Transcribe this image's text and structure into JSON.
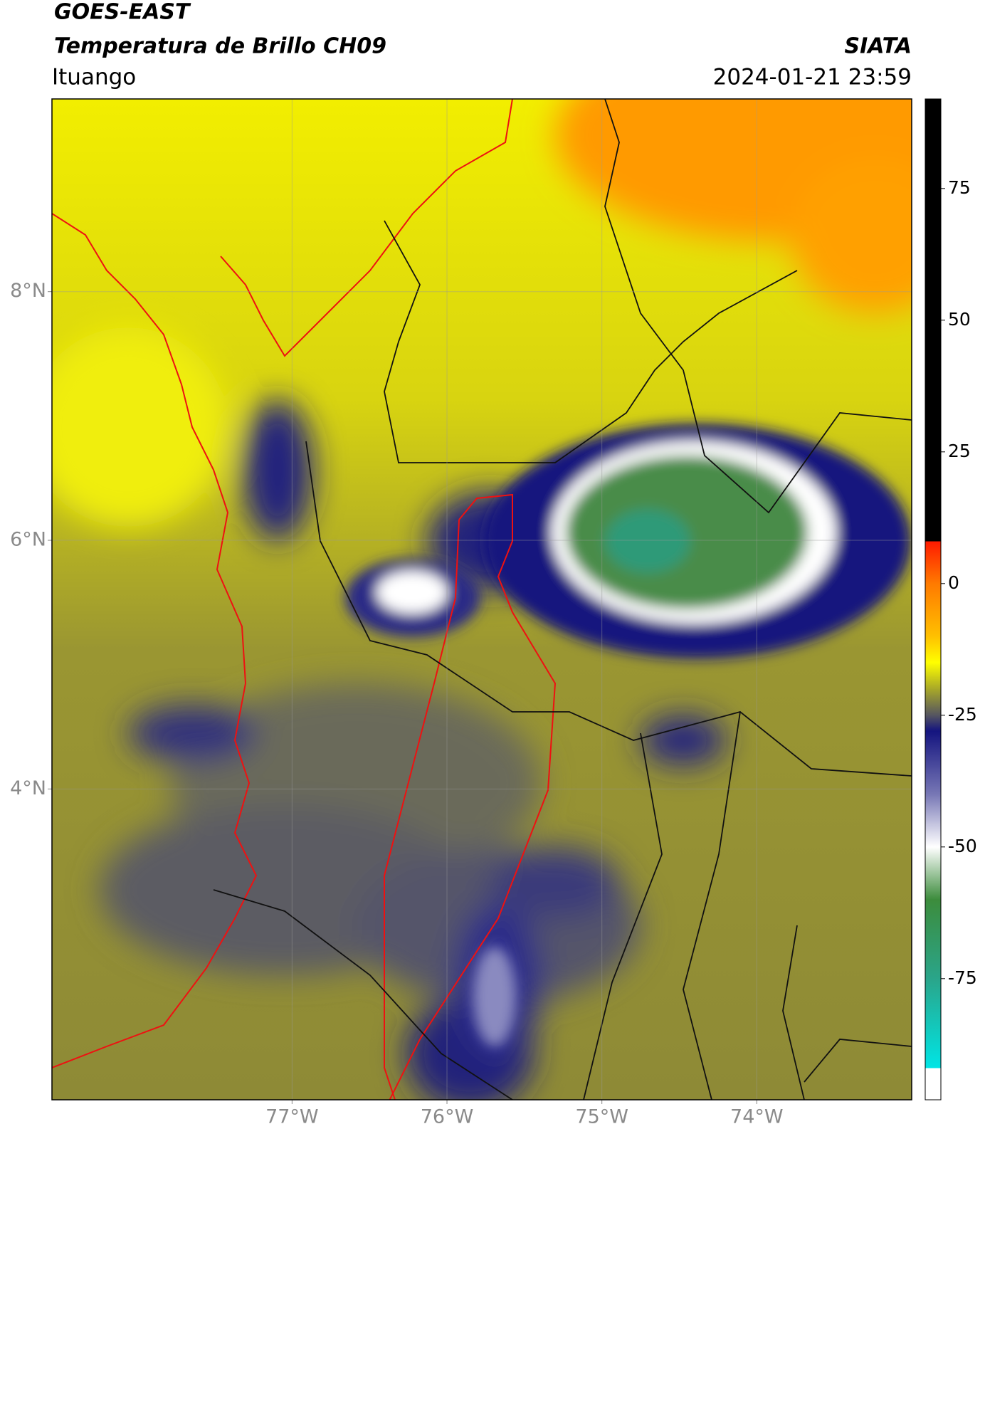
{
  "header": {
    "title_line1": "GOES-EAST",
    "title_line2": "Temperatura de Brillo CH09",
    "source": "SIATA",
    "location": "Ituango",
    "datetime": "2024-01-21 23:59"
  },
  "map": {
    "lon_range": [
      -78.55,
      -73.0
    ],
    "lat_range": [
      1.5,
      9.55
    ],
    "grid": true,
    "lon_ticks": [
      {
        "value": -77,
        "label": "77°W"
      },
      {
        "value": -76,
        "label": "76°W"
      },
      {
        "value": -75,
        "label": "75°W"
      },
      {
        "value": -74,
        "label": "74°W"
      }
    ],
    "lat_ticks": [
      {
        "value": 8,
        "label": "8°N"
      },
      {
        "value": 6,
        "label": "6°N"
      },
      {
        "value": 4,
        "label": "4°N"
      }
    ]
  },
  "colorbar": {
    "range": [
      -98,
      92
    ],
    "ticks": [
      75,
      50,
      25,
      0,
      -25,
      -50,
      -75
    ],
    "colors": [
      {
        "value": 92,
        "color": "#000000"
      },
      {
        "value": 8,
        "color": "#000000"
      },
      {
        "value": 8,
        "color": "#ff1a00"
      },
      {
        "value": 0,
        "color": "#ff7a00"
      },
      {
        "value": -10,
        "color": "#ffc000"
      },
      {
        "value": -15,
        "color": "#ffff00"
      },
      {
        "value": -20,
        "color": "#a8a828"
      },
      {
        "value": -25,
        "color": "#555560"
      },
      {
        "value": -28,
        "color": "#14147f"
      },
      {
        "value": -40,
        "color": "#7777b5"
      },
      {
        "value": -50,
        "color": "#ffffff"
      },
      {
        "value": -60,
        "color": "#3c8c3c"
      },
      {
        "value": -75,
        "color": "#2aa58a"
      },
      {
        "value": -92,
        "color": "#00e5e5"
      },
      {
        "value": -92,
        "color": "#ffffff"
      },
      {
        "value": -98,
        "color": "#ffffff"
      }
    ]
  }
}
